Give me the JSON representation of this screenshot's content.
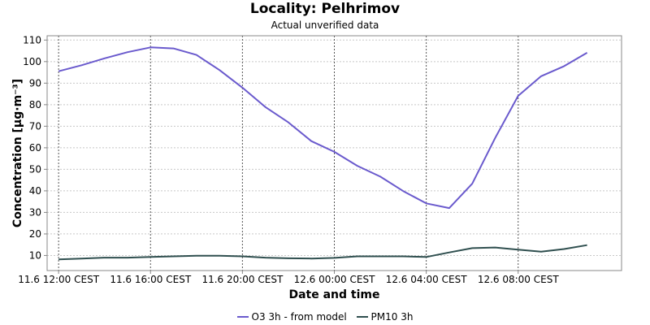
{
  "chart_data": {
    "type": "line",
    "title": "Locality: Pelhrimov",
    "subtitle": "Actual unverified data",
    "xlabel": "Date and time",
    "ylabel": "Concentration [µg·m⁻³]",
    "ylim": [
      3,
      112
    ],
    "xlim": [
      "11.6 11:30 CEST",
      "12.6 12:30 CEST"
    ],
    "yticks": [
      10,
      20,
      30,
      40,
      50,
      60,
      70,
      80,
      90,
      100,
      110
    ],
    "xticks": [
      {
        "time": "11.6 12:00 CEST",
        "label": "11.6 12:00 CEST"
      },
      {
        "time": "11.6 16:00 CEST",
        "label": "11.6 16:00 CEST"
      },
      {
        "time": "11.6 20:00 CEST",
        "label": "11.6 20:00 CEST"
      },
      {
        "time": "12.6 00:00 CEST",
        "label": "12.6 00:00 CEST"
      },
      {
        "time": "12.6 04:00 CEST",
        "label": "12.6 04:00 CEST"
      },
      {
        "time": "12.6 08:00 CEST",
        "label": "12.6 08:00 CEST"
      }
    ],
    "x": [
      "11.6 12:00 CEST",
      "11.6 13:00 CEST",
      "11.6 14:00 CEST",
      "11.6 15:00 CEST",
      "11.6 16:00 CEST",
      "11.6 17:00 CEST",
      "11.6 18:00 CEST",
      "11.6 19:00 CEST",
      "11.6 20:00 CEST",
      "11.6 21:00 CEST",
      "11.6 22:00 CEST",
      "11.6 23:00 CEST",
      "12.6 00:00 CEST",
      "12.6 01:00 CEST",
      "12.6 02:00 CEST",
      "12.6 03:00 CEST",
      "12.6 04:00 CEST",
      "12.6 05:00 CEST",
      "12.6 06:00 CEST",
      "12.6 07:00 CEST",
      "12.6 08:00 CEST",
      "12.6 09:00 CEST",
      "12.6 10:00 CEST",
      "12.6 11:00 CEST"
    ],
    "series": [
      {
        "name": "O3 3h - from model",
        "color": "#6a5acd",
        "values": [
          95.5,
          98.3,
          101.5,
          104.4,
          106.6,
          106.1,
          103.1,
          96.1,
          87.9,
          78.9,
          71.8,
          63.1,
          58.1,
          51.6,
          46.6,
          39.9,
          34.2,
          32.0,
          43.3,
          64.6,
          84.1,
          93.2,
          97.9,
          104.1
        ]
      },
      {
        "name": "PM10 3h",
        "color": "#2f4f4f",
        "values": [
          8.2,
          8.6,
          9.0,
          9.0,
          9.3,
          9.6,
          9.9,
          9.9,
          9.6,
          9.0,
          8.7,
          8.6,
          8.9,
          9.6,
          9.6,
          9.6,
          9.3,
          11.4,
          13.4,
          13.7,
          12.7,
          11.8,
          13.0,
          14.8
        ]
      }
    ],
    "grid": true,
    "legend": "bottom"
  }
}
